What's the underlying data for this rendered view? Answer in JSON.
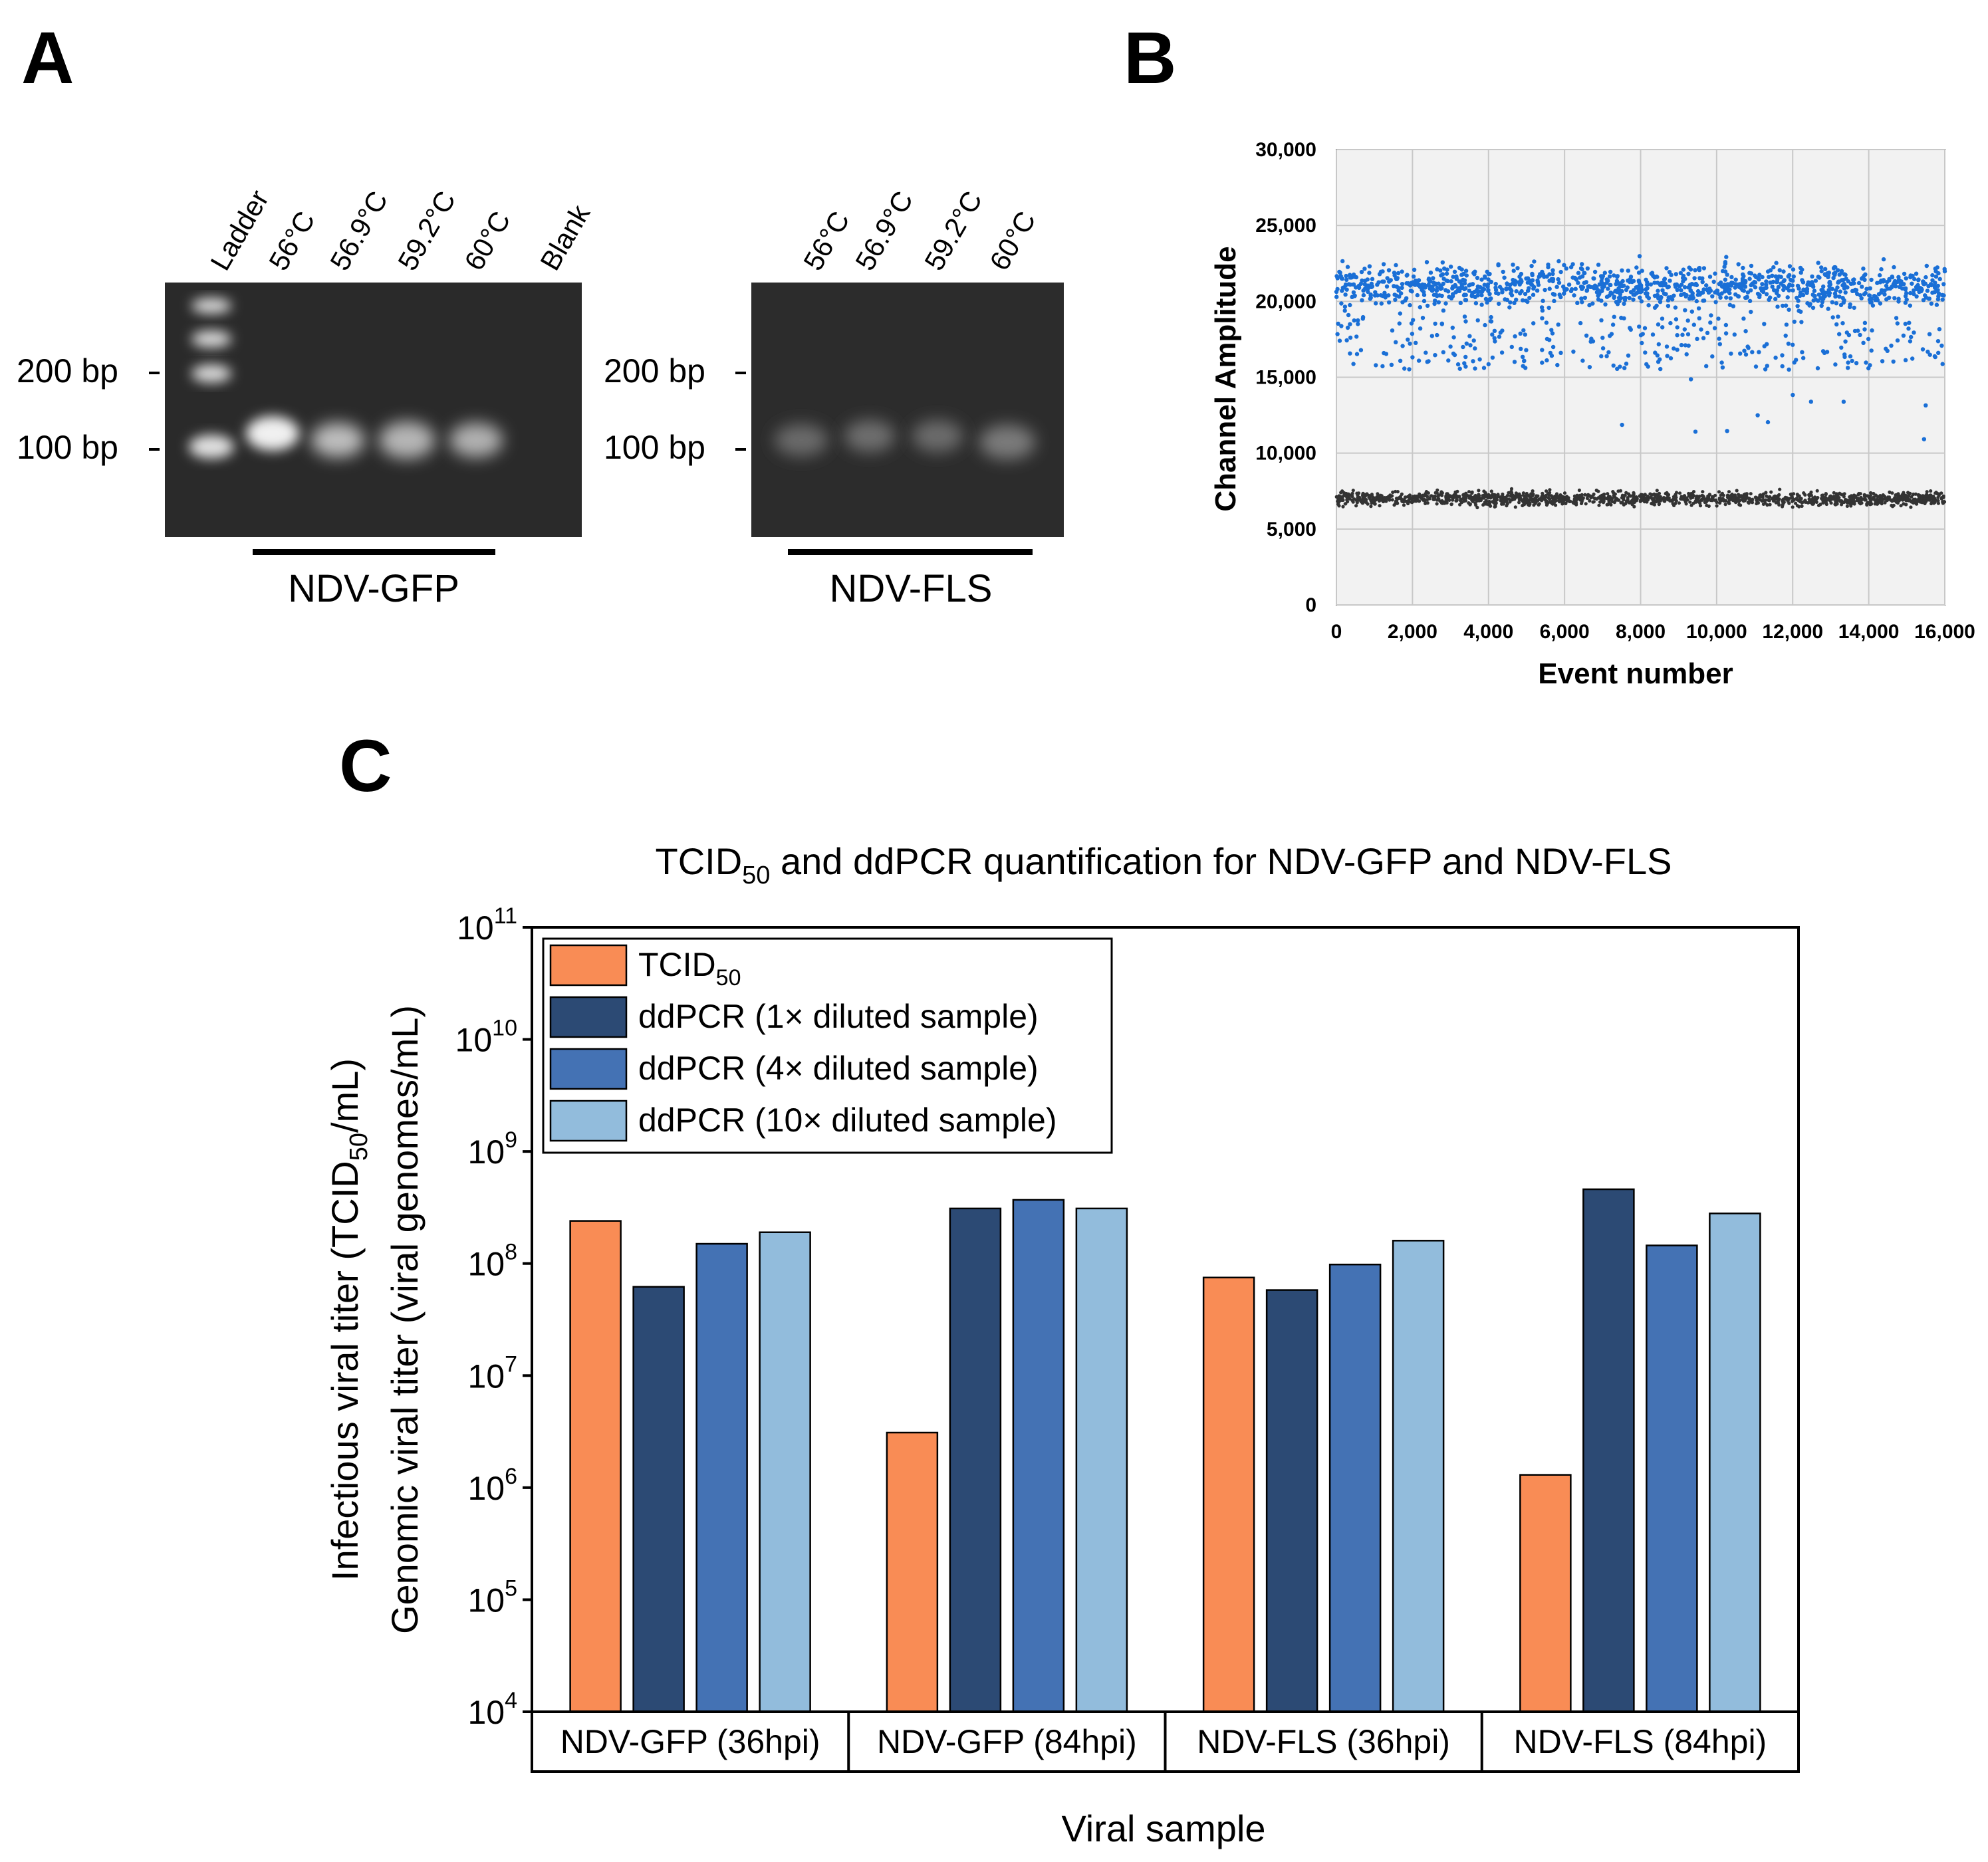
{
  "panel_a": {
    "label": "A",
    "gel1": {
      "lanes": [
        "Ladder",
        "56°C",
        "56.9°C",
        "59.2°C",
        "60°C",
        "Blank"
      ],
      "markers": [
        "200 bp",
        "100 bp"
      ],
      "group_label": "NDV-GFP"
    },
    "gel2": {
      "lanes": [
        "56°C",
        "56.9°C",
        "59.2°C",
        "60°C"
      ],
      "markers": [
        "200 bp",
        "100 bp"
      ],
      "group_label": "NDV-FLS"
    },
    "colors": {
      "gel_bg": "#2a2a2a",
      "band": "#e6e6e6"
    }
  },
  "panel_b": {
    "label": "B",
    "xlabel": "Event number",
    "ylabel": "Channel Amplitude",
    "x_ticks": [
      "0",
      "2,000",
      "4,000",
      "6,000",
      "8,000",
      "10,000",
      "12,000",
      "14,000",
      "16,000"
    ],
    "y_ticks": [
      "0",
      "5,000",
      "10,000",
      "15,000",
      "20,000",
      "25,000",
      "30,000"
    ],
    "xlim": [
      0,
      16000
    ],
    "ylim": [
      0,
      30000
    ],
    "positive_center": 21000,
    "negative_center": 7000,
    "colors": {
      "positive": "#1a6fd6",
      "negative": "#333333",
      "plot_bg": "#f2f2f2"
    }
  },
  "chart_data": {
    "type": "bar",
    "title_main": "TCID",
    "title_sub": "50",
    "title_rest": " and ddPCR quantification for NDV-GFP and NDV-FLS",
    "xlabel": "Viral sample",
    "ylabel_line1": "Infectious viral titer (TCID",
    "ylabel_line1_sub": "50",
    "ylabel_line1_end": "/mL)",
    "ylabel_line2": "Genomic viral titer (viral genomes/mL)",
    "yscale": "log",
    "ylim": [
      10000,
      100000000000
    ],
    "y_tick_exponents": [
      "4",
      "5",
      "6",
      "7",
      "8",
      "9",
      "10",
      "11"
    ],
    "y_tick_base": "10",
    "categories": [
      "NDV-GFP (36hpi)",
      "NDV-GFP (84hpi)",
      "NDV-FLS (36hpi)",
      "NDV-FLS (84hpi)"
    ],
    "series": [
      {
        "name": "TCID",
        "name_sub": "50",
        "color": "#f98c55",
        "values": [
          240000000,
          3100000,
          75000000,
          1300000
        ]
      },
      {
        "name": "ddPCR (1× diluted sample)",
        "color": "#2c4a74",
        "values": [
          62000000,
          310000000,
          58000000,
          460000000
        ]
      },
      {
        "name": "ddPCR (4× diluted sample)",
        "color": "#4472b4",
        "values": [
          150000000,
          370000000,
          98000000,
          145000000
        ]
      },
      {
        "name": "ddPCR (10× diluted sample)",
        "color": "#92bcdc",
        "values": [
          190000000,
          310000000,
          160000000,
          280000000
        ]
      }
    ],
    "legend_position": "top-left",
    "panel_label": "C"
  }
}
